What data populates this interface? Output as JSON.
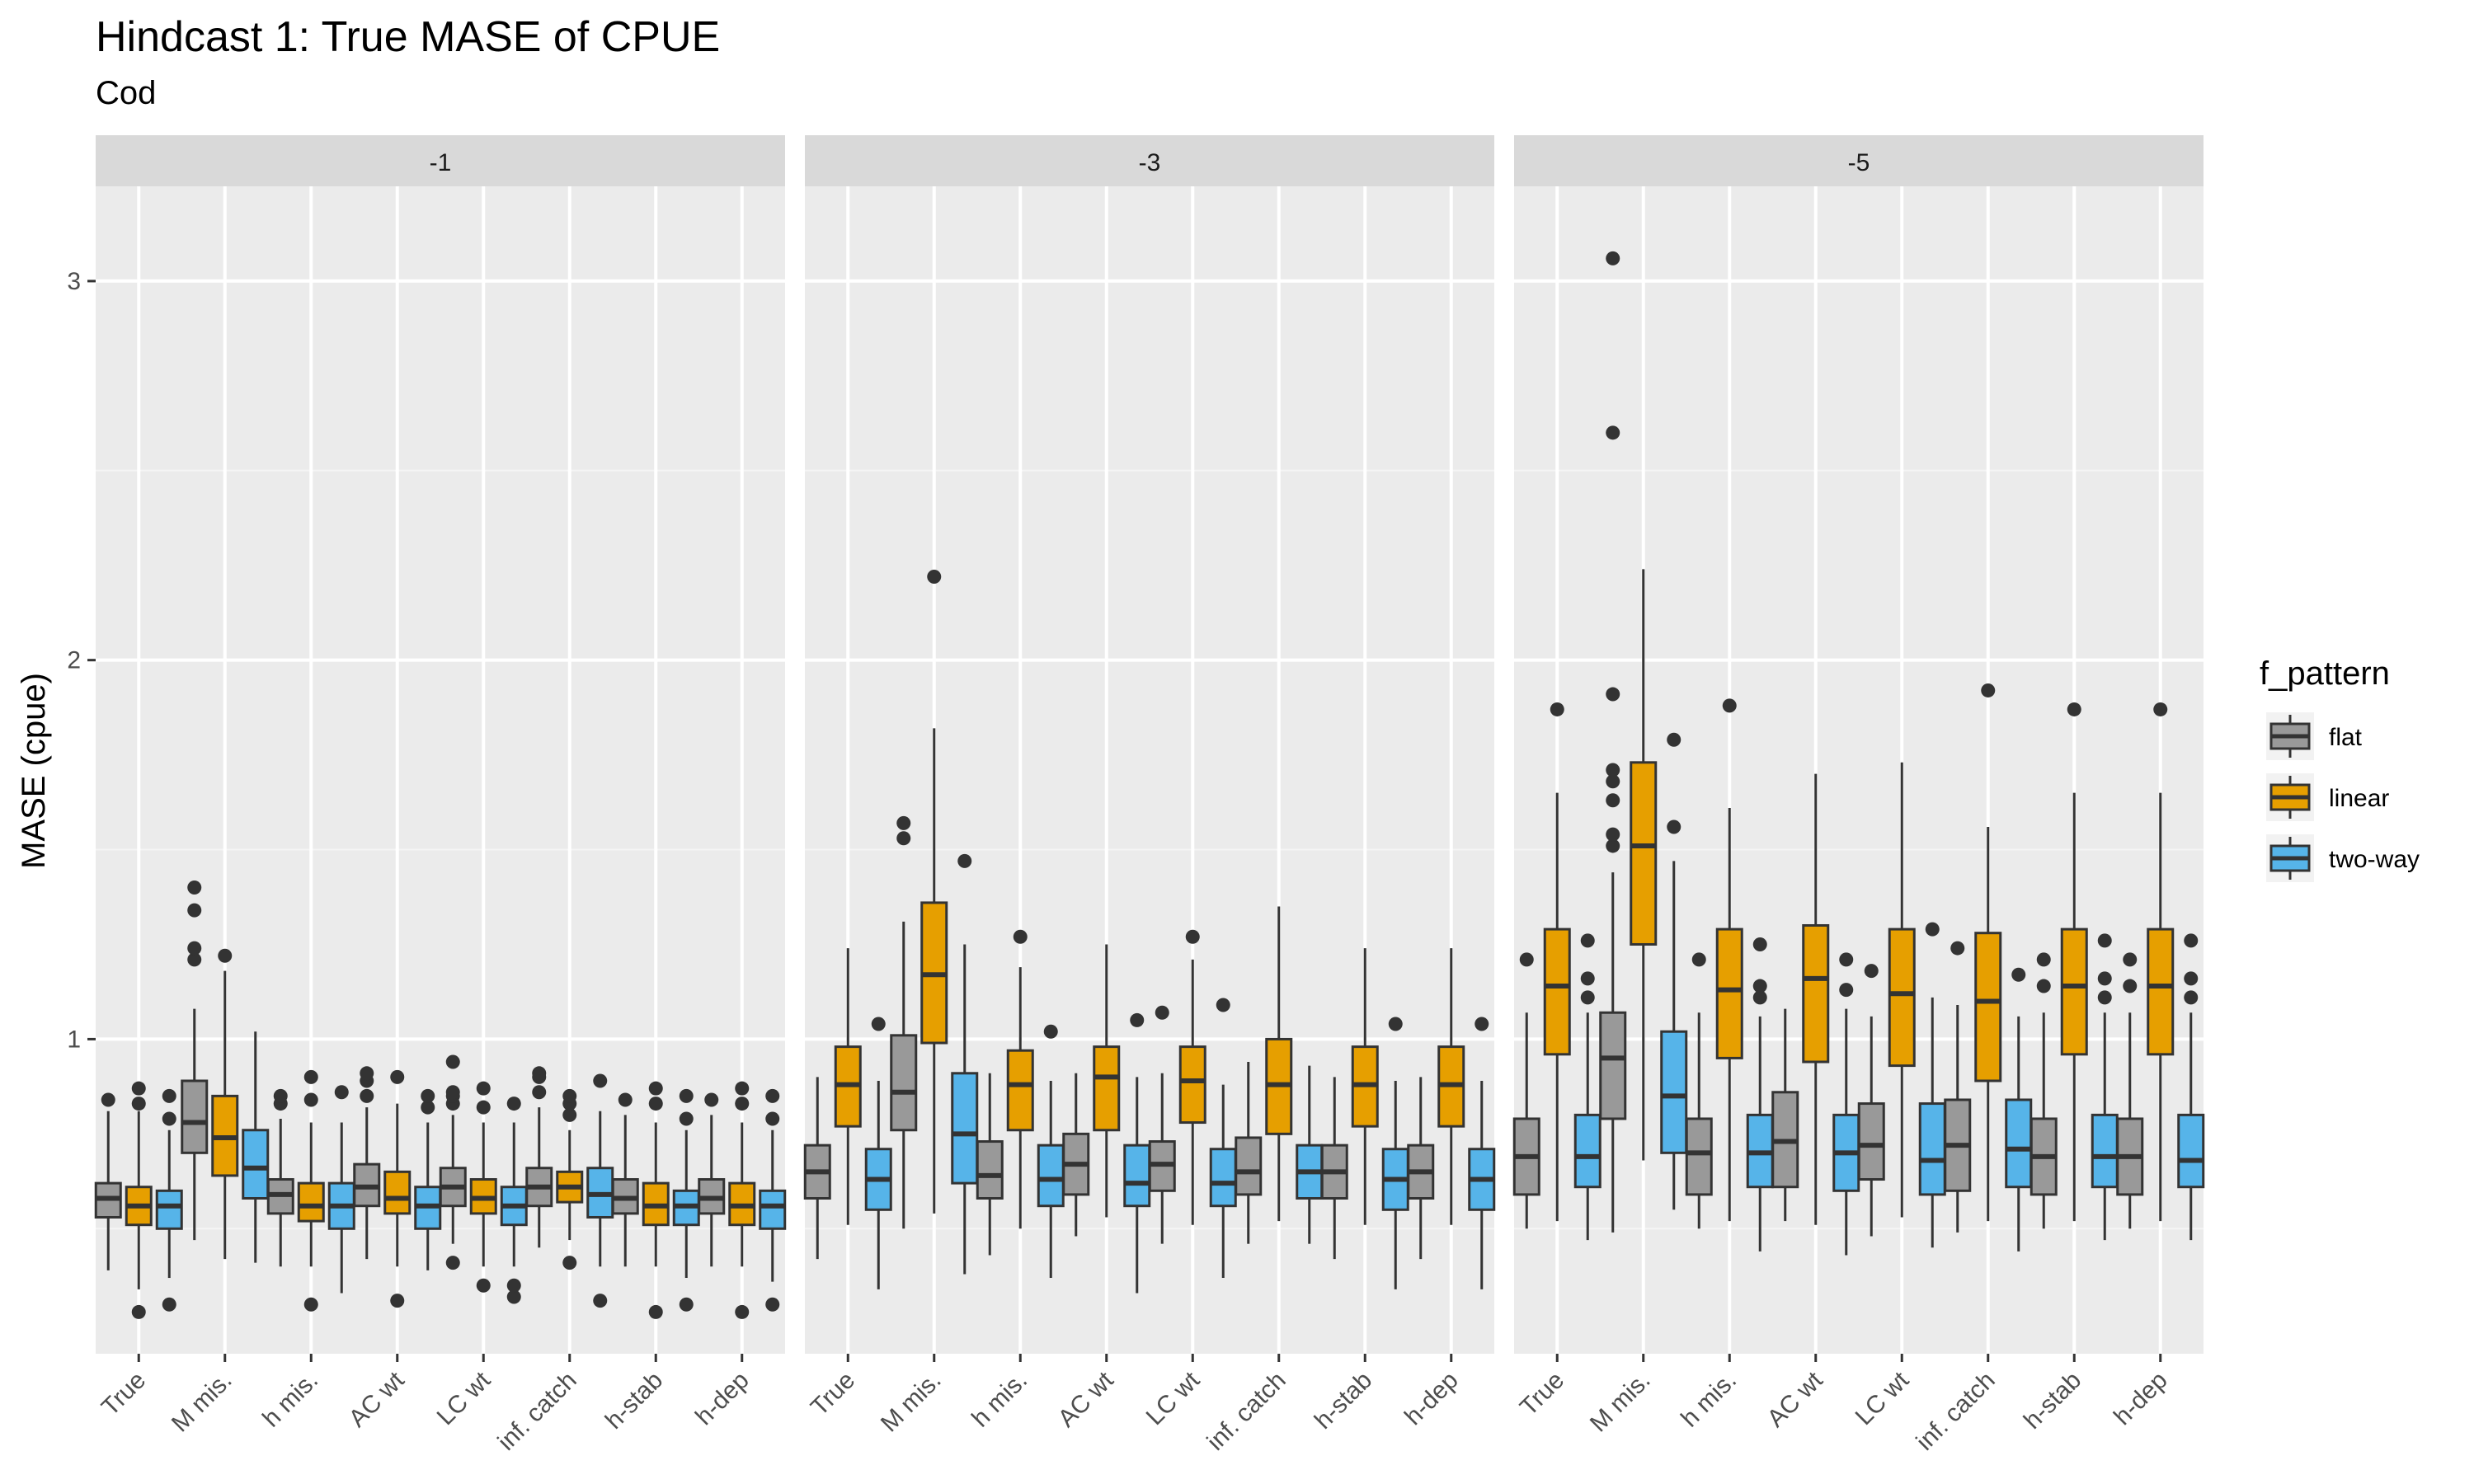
{
  "colors": {
    "panel_bg": "#EBEBEB",
    "strip_bg": "#D9D9D9",
    "grid_major": "#FFFFFF",
    "grid_minor": "#F5F5F5",
    "box_outline": "#333333",
    "flat": "#999999",
    "linear": "#E69F00",
    "two-way": "#56B4E9"
  },
  "chart_data": {
    "type": "boxplot",
    "title": "Hindcast 1: True MASE of CPUE",
    "subtitle": "Cod",
    "xlabel": "",
    "ylabel": "MASE (cpue)",
    "ylim": [
      0.17,
      3.25
    ],
    "y_ticks": [
      1,
      2,
      3
    ],
    "grid": true,
    "legend_title": "f_pattern",
    "legend_position": "right",
    "categories": [
      "True",
      "M mis.",
      "h mis.",
      "AC wt",
      "LC wt",
      "inf. catch",
      "h-stab",
      "h-dep"
    ],
    "series_names": [
      "flat",
      "linear",
      "two-way"
    ],
    "facets": [
      {
        "label": "-1",
        "groups": [
          [
            {
              "lw": 0.39,
              "q1": 0.53,
              "med": 0.58,
              "q3": 0.62,
              "uw": 0.81,
              "out": [
                0.84
              ]
            },
            {
              "lw": 0.34,
              "q1": 0.51,
              "med": 0.56,
              "q3": 0.61,
              "uw": 0.81,
              "out": [
                0.28,
                0.83,
                0.87
              ]
            },
            {
              "lw": 0.37,
              "q1": 0.5,
              "med": 0.56,
              "q3": 0.6,
              "uw": 0.76,
              "out": [
                0.3,
                0.79,
                0.85
              ]
            }
          ],
          [
            {
              "lw": 0.47,
              "q1": 0.7,
              "med": 0.78,
              "q3": 0.89,
              "uw": 1.08,
              "out": [
                1.21,
                1.24,
                1.34,
                1.4
              ]
            },
            {
              "lw": 0.42,
              "q1": 0.64,
              "med": 0.74,
              "q3": 0.85,
              "uw": 1.18,
              "out": [
                1.22
              ]
            },
            {
              "lw": 0.41,
              "q1": 0.58,
              "med": 0.66,
              "q3": 0.76,
              "uw": 1.02,
              "out": []
            }
          ],
          [
            {
              "lw": 0.4,
              "q1": 0.54,
              "med": 0.59,
              "q3": 0.63,
              "uw": 0.79,
              "out": [
                0.83,
                0.85
              ]
            },
            {
              "lw": 0.4,
              "q1": 0.52,
              "med": 0.56,
              "q3": 0.62,
              "uw": 0.78,
              "out": [
                0.3,
                0.84,
                0.9
              ]
            },
            {
              "lw": 0.33,
              "q1": 0.5,
              "med": 0.56,
              "q3": 0.62,
              "uw": 0.78,
              "out": [
                0.86
              ]
            }
          ],
          [
            {
              "lw": 0.42,
              "q1": 0.56,
              "med": 0.61,
              "q3": 0.67,
              "uw": 0.82,
              "out": [
                0.85,
                0.89,
                0.91
              ]
            },
            {
              "lw": 0.4,
              "q1": 0.54,
              "med": 0.58,
              "q3": 0.65,
              "uw": 0.83,
              "out": [
                0.31,
                0.9
              ]
            },
            {
              "lw": 0.39,
              "q1": 0.5,
              "med": 0.56,
              "q3": 0.61,
              "uw": 0.78,
              "out": [
                0.82,
                0.85
              ]
            }
          ],
          [
            {
              "lw": 0.46,
              "q1": 0.56,
              "med": 0.61,
              "q3": 0.66,
              "uw": 0.8,
              "out": [
                0.41,
                0.83,
                0.85,
                0.86,
                0.94
              ]
            },
            {
              "lw": 0.4,
              "q1": 0.54,
              "med": 0.58,
              "q3": 0.63,
              "uw": 0.78,
              "out": [
                0.35,
                0.82,
                0.87
              ]
            },
            {
              "lw": 0.4,
              "q1": 0.51,
              "med": 0.56,
              "q3": 0.61,
              "uw": 0.78,
              "out": [
                0.32,
                0.35,
                0.83
              ]
            }
          ],
          [
            {
              "lw": 0.45,
              "q1": 0.56,
              "med": 0.61,
              "q3": 0.66,
              "uw": 0.82,
              "out": [
                0.86,
                0.9,
                0.91
              ]
            },
            {
              "lw": 0.47,
              "q1": 0.57,
              "med": 0.61,
              "q3": 0.65,
              "uw": 0.76,
              "out": [
                0.41,
                0.8,
                0.83,
                0.85
              ]
            },
            {
              "lw": 0.4,
              "q1": 0.53,
              "med": 0.59,
              "q3": 0.66,
              "uw": 0.81,
              "out": [
                0.31,
                0.89
              ]
            }
          ],
          [
            {
              "lw": 0.4,
              "q1": 0.54,
              "med": 0.58,
              "q3": 0.63,
              "uw": 0.8,
              "out": [
                0.84
              ]
            },
            {
              "lw": 0.4,
              "q1": 0.51,
              "med": 0.56,
              "q3": 0.62,
              "uw": 0.78,
              "out": [
                0.28,
                0.83,
                0.87
              ]
            },
            {
              "lw": 0.37,
              "q1": 0.51,
              "med": 0.56,
              "q3": 0.6,
              "uw": 0.76,
              "out": [
                0.3,
                0.79,
                0.85
              ]
            }
          ],
          [
            {
              "lw": 0.4,
              "q1": 0.54,
              "med": 0.58,
              "q3": 0.63,
              "uw": 0.8,
              "out": [
                0.84
              ]
            },
            {
              "lw": 0.4,
              "q1": 0.51,
              "med": 0.56,
              "q3": 0.62,
              "uw": 0.78,
              "out": [
                0.28,
                0.83,
                0.87
              ]
            },
            {
              "lw": 0.36,
              "q1": 0.5,
              "med": 0.56,
              "q3": 0.6,
              "uw": 0.76,
              "out": [
                0.3,
                0.79,
                0.85
              ]
            }
          ]
        ]
      },
      {
        "label": "-3",
        "groups": [
          [
            {
              "lw": 0.42,
              "q1": 0.58,
              "med": 0.65,
              "q3": 0.72,
              "uw": 0.9,
              "out": []
            },
            {
              "lw": 0.51,
              "q1": 0.77,
              "med": 0.88,
              "q3": 0.98,
              "uw": 1.24,
              "out": []
            },
            {
              "lw": 0.34,
              "q1": 0.55,
              "med": 0.63,
              "q3": 0.71,
              "uw": 0.89,
              "out": [
                1.04
              ]
            }
          ],
          [
            {
              "lw": 0.5,
              "q1": 0.76,
              "med": 0.86,
              "q3": 1.01,
              "uw": 1.31,
              "out": [
                1.53,
                1.57
              ]
            },
            {
              "lw": 0.54,
              "q1": 0.99,
              "med": 1.17,
              "q3": 1.36,
              "uw": 1.82,
              "out": [
                2.22
              ]
            },
            {
              "lw": 0.38,
              "q1": 0.62,
              "med": 0.75,
              "q3": 0.91,
              "uw": 1.25,
              "out": [
                1.47
              ]
            }
          ],
          [
            {
              "lw": 0.43,
              "q1": 0.58,
              "med": 0.64,
              "q3": 0.73,
              "uw": 0.91,
              "out": []
            },
            {
              "lw": 0.5,
              "q1": 0.76,
              "med": 0.88,
              "q3": 0.97,
              "uw": 1.19,
              "out": [
                1.27
              ]
            },
            {
              "lw": 0.37,
              "q1": 0.56,
              "med": 0.63,
              "q3": 0.72,
              "uw": 0.89,
              "out": [
                1.02
              ]
            }
          ],
          [
            {
              "lw": 0.48,
              "q1": 0.59,
              "med": 0.67,
              "q3": 0.75,
              "uw": 0.91,
              "out": []
            },
            {
              "lw": 0.53,
              "q1": 0.76,
              "med": 0.9,
              "q3": 0.98,
              "uw": 1.25,
              "out": []
            },
            {
              "lw": 0.33,
              "q1": 0.56,
              "med": 0.62,
              "q3": 0.72,
              "uw": 0.9,
              "out": [
                1.05
              ]
            }
          ],
          [
            {
              "lw": 0.46,
              "q1": 0.6,
              "med": 0.67,
              "q3": 0.73,
              "uw": 0.91,
              "out": [
                1.07
              ]
            },
            {
              "lw": 0.51,
              "q1": 0.78,
              "med": 0.89,
              "q3": 0.98,
              "uw": 1.21,
              "out": [
                1.27
              ]
            },
            {
              "lw": 0.37,
              "q1": 0.56,
              "med": 0.62,
              "q3": 0.71,
              "uw": 0.88,
              "out": [
                1.09
              ]
            }
          ],
          [
            {
              "lw": 0.46,
              "q1": 0.59,
              "med": 0.65,
              "q3": 0.74,
              "uw": 0.94,
              "out": []
            },
            {
              "lw": 0.52,
              "q1": 0.75,
              "med": 0.88,
              "q3": 1.0,
              "uw": 1.35,
              "out": []
            },
            {
              "lw": 0.46,
              "q1": 0.58,
              "med": 0.65,
              "q3": 0.72,
              "uw": 0.93,
              "out": []
            }
          ],
          [
            {
              "lw": 0.42,
              "q1": 0.58,
              "med": 0.65,
              "q3": 0.72,
              "uw": 0.9,
              "out": []
            },
            {
              "lw": 0.51,
              "q1": 0.77,
              "med": 0.88,
              "q3": 0.98,
              "uw": 1.24,
              "out": []
            },
            {
              "lw": 0.34,
              "q1": 0.55,
              "med": 0.63,
              "q3": 0.71,
              "uw": 0.89,
              "out": [
                1.04
              ]
            }
          ],
          [
            {
              "lw": 0.42,
              "q1": 0.58,
              "med": 0.65,
              "q3": 0.72,
              "uw": 0.9,
              "out": []
            },
            {
              "lw": 0.51,
              "q1": 0.77,
              "med": 0.88,
              "q3": 0.98,
              "uw": 1.24,
              "out": []
            },
            {
              "lw": 0.34,
              "q1": 0.55,
              "med": 0.63,
              "q3": 0.71,
              "uw": 0.89,
              "out": [
                1.04
              ]
            }
          ]
        ]
      },
      {
        "label": "-5",
        "groups": [
          [
            {
              "lw": 0.5,
              "q1": 0.59,
              "med": 0.69,
              "q3": 0.79,
              "uw": 1.07,
              "out": [
                1.21
              ]
            },
            {
              "lw": 0.52,
              "q1": 0.96,
              "med": 1.14,
              "q3": 1.29,
              "uw": 1.65,
              "out": [
                1.87
              ]
            },
            {
              "lw": 0.47,
              "q1": 0.61,
              "med": 0.69,
              "q3": 0.8,
              "uw": 1.07,
              "out": [
                1.11,
                1.16,
                1.26
              ]
            }
          ],
          [
            {
              "lw": 0.49,
              "q1": 0.79,
              "med": 0.95,
              "q3": 1.07,
              "uw": 1.44,
              "out": [
                1.51,
                1.54,
                1.63,
                1.68,
                1.71,
                1.91,
                2.6,
                3.06
              ]
            },
            {
              "lw": 0.68,
              "q1": 1.25,
              "med": 1.51,
              "q3": 1.73,
              "uw": 2.24,
              "out": []
            },
            {
              "lw": 0.55,
              "q1": 0.7,
              "med": 0.85,
              "q3": 1.02,
              "uw": 1.47,
              "out": [
                1.56,
                1.79
              ]
            }
          ],
          [
            {
              "lw": 0.5,
              "q1": 0.59,
              "med": 0.7,
              "q3": 0.79,
              "uw": 1.07,
              "out": [
                1.21
              ]
            },
            {
              "lw": 0.52,
              "q1": 0.95,
              "med": 1.13,
              "q3": 1.29,
              "uw": 1.61,
              "out": [
                1.88
              ]
            },
            {
              "lw": 0.44,
              "q1": 0.61,
              "med": 0.7,
              "q3": 0.8,
              "uw": 1.06,
              "out": [
                1.11,
                1.14,
                1.25
              ]
            }
          ],
          [
            {
              "lw": 0.52,
              "q1": 0.61,
              "med": 0.73,
              "q3": 0.86,
              "uw": 1.08,
              "out": []
            },
            {
              "lw": 0.51,
              "q1": 0.94,
              "med": 1.16,
              "q3": 1.3,
              "uw": 1.7,
              "out": []
            },
            {
              "lw": 0.43,
              "q1": 0.6,
              "med": 0.7,
              "q3": 0.8,
              "uw": 1.08,
              "out": [
                1.13,
                1.21
              ]
            }
          ],
          [
            {
              "lw": 0.48,
              "q1": 0.63,
              "med": 0.72,
              "q3": 0.83,
              "uw": 1.06,
              "out": [
                1.18
              ]
            },
            {
              "lw": 0.53,
              "q1": 0.93,
              "med": 1.12,
              "q3": 1.29,
              "uw": 1.73,
              "out": []
            },
            {
              "lw": 0.45,
              "q1": 0.59,
              "med": 0.68,
              "q3": 0.83,
              "uw": 1.11,
              "out": [
                1.29
              ]
            }
          ],
          [
            {
              "lw": 0.49,
              "q1": 0.6,
              "med": 0.72,
              "q3": 0.84,
              "uw": 1.09,
              "out": [
                1.24
              ]
            },
            {
              "lw": 0.52,
              "q1": 0.89,
              "med": 1.1,
              "q3": 1.28,
              "uw": 1.56,
              "out": [
                1.92
              ]
            },
            {
              "lw": 0.44,
              "q1": 0.61,
              "med": 0.71,
              "q3": 0.84,
              "uw": 1.06,
              "out": [
                1.17
              ]
            }
          ],
          [
            {
              "lw": 0.5,
              "q1": 0.59,
              "med": 0.69,
              "q3": 0.79,
              "uw": 1.07,
              "out": [
                1.14,
                1.21
              ]
            },
            {
              "lw": 0.52,
              "q1": 0.96,
              "med": 1.14,
              "q3": 1.29,
              "uw": 1.65,
              "out": [
                1.87
              ]
            },
            {
              "lw": 0.47,
              "q1": 0.61,
              "med": 0.69,
              "q3": 0.8,
              "uw": 1.07,
              "out": [
                1.11,
                1.16,
                1.26
              ]
            }
          ],
          [
            {
              "lw": 0.5,
              "q1": 0.59,
              "med": 0.69,
              "q3": 0.79,
              "uw": 1.07,
              "out": [
                1.14,
                1.21
              ]
            },
            {
              "lw": 0.52,
              "q1": 0.96,
              "med": 1.14,
              "q3": 1.29,
              "uw": 1.65,
              "out": [
                1.87
              ]
            },
            {
              "lw": 0.47,
              "q1": 0.61,
              "med": 0.68,
              "q3": 0.8,
              "uw": 1.07,
              "out": [
                1.11,
                1.16,
                1.26
              ]
            }
          ]
        ]
      }
    ]
  }
}
